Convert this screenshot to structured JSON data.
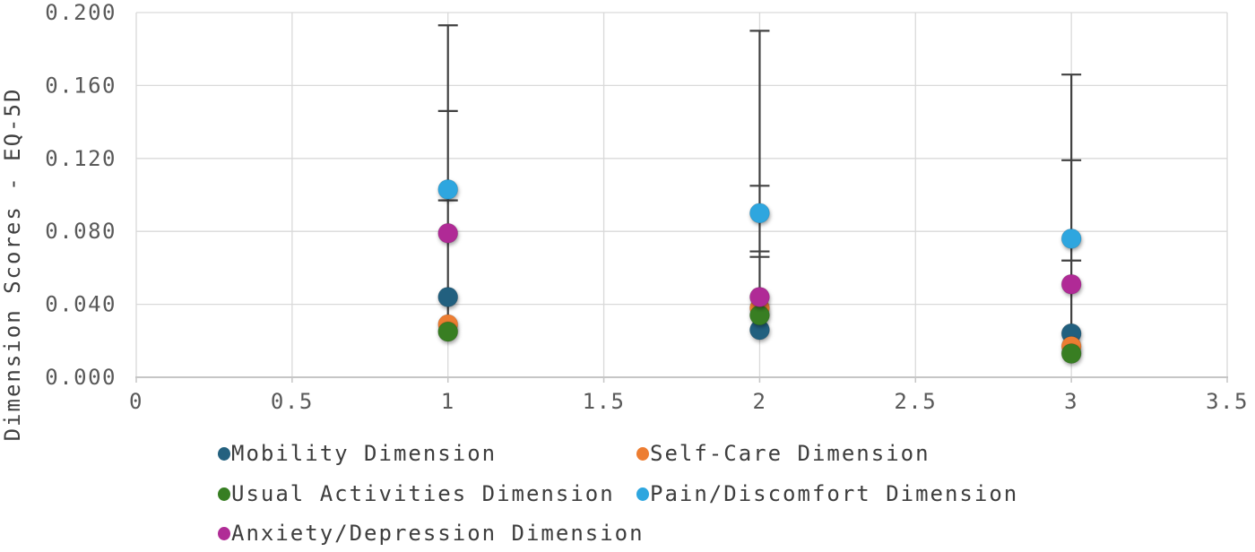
{
  "figure": {
    "background": "#ffffff",
    "tick_text_color": "#595959",
    "title_text_color": "#404040",
    "legend_text_color": "#3d3d3d",
    "grid_color": "#d9d9d9",
    "axis_line_color": "#c6c6c6",
    "error_bar_color": "#404040"
  },
  "chart_data": {
    "type": "scatter",
    "title": "",
    "xlabel": "",
    "ylabel": "Dimension Scores - EQ-5D",
    "xlim": [
      0,
      3.5
    ],
    "ylim": [
      0.0,
      0.2
    ],
    "xticks": [
      "0",
      "0.5",
      "1",
      "1.5",
      "2",
      "2.5",
      "3",
      "3.5"
    ],
    "xtick_values": [
      0,
      0.5,
      1,
      1.5,
      2,
      2.5,
      3,
      3.5
    ],
    "yticks": [
      "0.000",
      "0.040",
      "0.080",
      "0.120",
      "0.160",
      "0.200"
    ],
    "ytick_values": [
      0,
      0.04,
      0.08,
      0.12,
      0.16,
      0.2
    ],
    "grid": {
      "horizontal": true,
      "vertical": true
    },
    "legend_position": "bottom",
    "x": [
      1,
      2,
      3
    ],
    "series": [
      {
        "name": "Mobility Dimension",
        "color": "#24617f",
        "values": [
          0.044,
          0.026,
          0.024
        ]
      },
      {
        "name": "Self-Care Dimension",
        "color": "#ed7d31",
        "values": [
          0.029,
          0.038,
          0.017
        ]
      },
      {
        "name": "Usual Activities Dimension",
        "color": "#377e22",
        "values": [
          0.025,
          0.034,
          0.013
        ]
      },
      {
        "name": "Pain/Discomfort Dimension",
        "color": "#2ea6df",
        "values": [
          0.103,
          0.09,
          0.076
        ]
      },
      {
        "name": "Anxiety/Depression Dimension",
        "color": "#b02c96",
        "values": [
          0.079,
          0.044,
          0.051
        ]
      }
    ],
    "error_bars": [
      {
        "x": 1,
        "line_top": 0.193,
        "line_bottom": 0.025,
        "caps": [
          0.193,
          0.146,
          0.097
        ]
      },
      {
        "x": 2,
        "line_top": 0.19,
        "line_bottom": 0.026,
        "caps": [
          0.19,
          0.105,
          0.069,
          0.066
        ]
      },
      {
        "x": 3,
        "line_top": 0.166,
        "line_bottom": 0.013,
        "caps": [
          0.166,
          0.119,
          0.064
        ]
      }
    ]
  }
}
